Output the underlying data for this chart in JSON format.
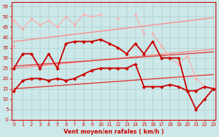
{
  "x": [
    0,
    1,
    2,
    3,
    4,
    5,
    6,
    7,
    8,
    9,
    10,
    11,
    12,
    13,
    14,
    15,
    16,
    17,
    18,
    19,
    20,
    21,
    22,
    23
  ],
  "series": [
    {
      "name": "rafales_light1",
      "color": "#ffaaaa",
      "linewidth": 0.9,
      "marker": "D",
      "markersize": 2.0,
      "y": [
        48,
        44,
        49,
        46,
        48,
        45,
        50,
        46,
        51,
        50,
        51,
        null,
        49,
        null,
        51,
        42,
        null,
        null,
        null,
        null,
        null,
        null,
        null,
        null
      ]
    },
    {
      "name": "rafales_light2",
      "color": "#ffaaaa",
      "linewidth": 0.9,
      "marker": "D",
      "markersize": 2.0,
      "y": [
        36,
        null,
        null,
        null,
        null,
        null,
        null,
        null,
        null,
        null,
        null,
        null,
        null,
        null,
        null,
        null,
        42,
        36,
        30,
        27,
        31,
        20,
        16,
        15
      ]
    },
    {
      "name": "trend_upper",
      "color": "#ff8888",
      "linewidth": 1.0,
      "marker": null,
      "markersize": 0,
      "y": [
        38,
        38.5,
        39,
        39.5,
        40,
        40.5,
        41,
        41.5,
        42,
        42.5,
        43,
        43.5,
        44,
        44.5,
        45,
        45.5,
        46,
        46.5,
        47,
        47.5,
        48,
        48.5,
        49,
        49.5
      ]
    },
    {
      "name": "trend_lower",
      "color": "#ff8888",
      "linewidth": 1.0,
      "marker": null,
      "markersize": 0,
      "y": [
        25,
        25.4,
        25.8,
        26.2,
        26.6,
        27,
        27.4,
        27.8,
        28.2,
        28.6,
        29,
        29.4,
        29.8,
        30.2,
        30.6,
        31,
        31.4,
        31.8,
        32.2,
        32.6,
        33,
        33.4,
        33.8,
        34.2
      ]
    },
    {
      "name": "mean_upper",
      "color": "#dd4444",
      "linewidth": 1.1,
      "marker": null,
      "markersize": 0,
      "y": [
        26,
        26.3,
        26.6,
        26.9,
        27.2,
        27.5,
        27.8,
        28.1,
        28.4,
        28.7,
        29.0,
        29.3,
        29.6,
        29.9,
        30.2,
        30.5,
        30.8,
        31.1,
        31.4,
        31.7,
        32.0,
        32.3,
        32.6,
        32.9
      ]
    },
    {
      "name": "mean_lower",
      "color": "#dd4444",
      "linewidth": 1.1,
      "marker": null,
      "markersize": 0,
      "y": [
        15,
        15.3,
        15.6,
        15.9,
        16.2,
        16.5,
        16.8,
        17.1,
        17.4,
        17.7,
        18.0,
        18.3,
        18.6,
        18.9,
        19.2,
        19.5,
        19.8,
        20.1,
        20.4,
        20.7,
        21.0,
        21.3,
        21.6,
        21.9
      ]
    },
    {
      "name": "wind_main",
      "color": "#cc0000",
      "linewidth": 1.4,
      "marker": "D",
      "markersize": 2.5,
      "y": [
        25,
        32,
        32,
        25,
        32,
        25,
        37,
        38,
        38,
        38,
        39,
        37,
        35,
        32,
        37,
        32,
        38,
        30,
        30,
        30,
        14,
        14,
        16,
        15
      ]
    },
    {
      "name": "wind_lower",
      "color": "#cc0000",
      "linewidth": 1.4,
      "marker": "D",
      "markersize": 2.5,
      "y": [
        14,
        19,
        20,
        20,
        19,
        20,
        19,
        20,
        22,
        24,
        25,
        25,
        25,
        25,
        27,
        16,
        16,
        16,
        17,
        16,
        14,
        5,
        10,
        15
      ]
    }
  ],
  "xlim": [
    -0.3,
    23.3
  ],
  "ylim": [
    0,
    57
  ],
  "yticks": [
    0,
    5,
    10,
    15,
    20,
    25,
    30,
    35,
    40,
    45,
    50,
    55
  ],
  "xticks": [
    0,
    1,
    2,
    3,
    4,
    5,
    6,
    7,
    8,
    9,
    10,
    11,
    12,
    13,
    14,
    15,
    16,
    17,
    18,
    19,
    20,
    21,
    22,
    23
  ],
  "xlabel": "Vent moyen/en rafales ( km/h )",
  "background_color": "#cce8e8",
  "grid_color": "#aacccc",
  "axis_color": "#cc0000",
  "tick_label_color": "#cc0000",
  "xlabel_color": "#cc0000"
}
